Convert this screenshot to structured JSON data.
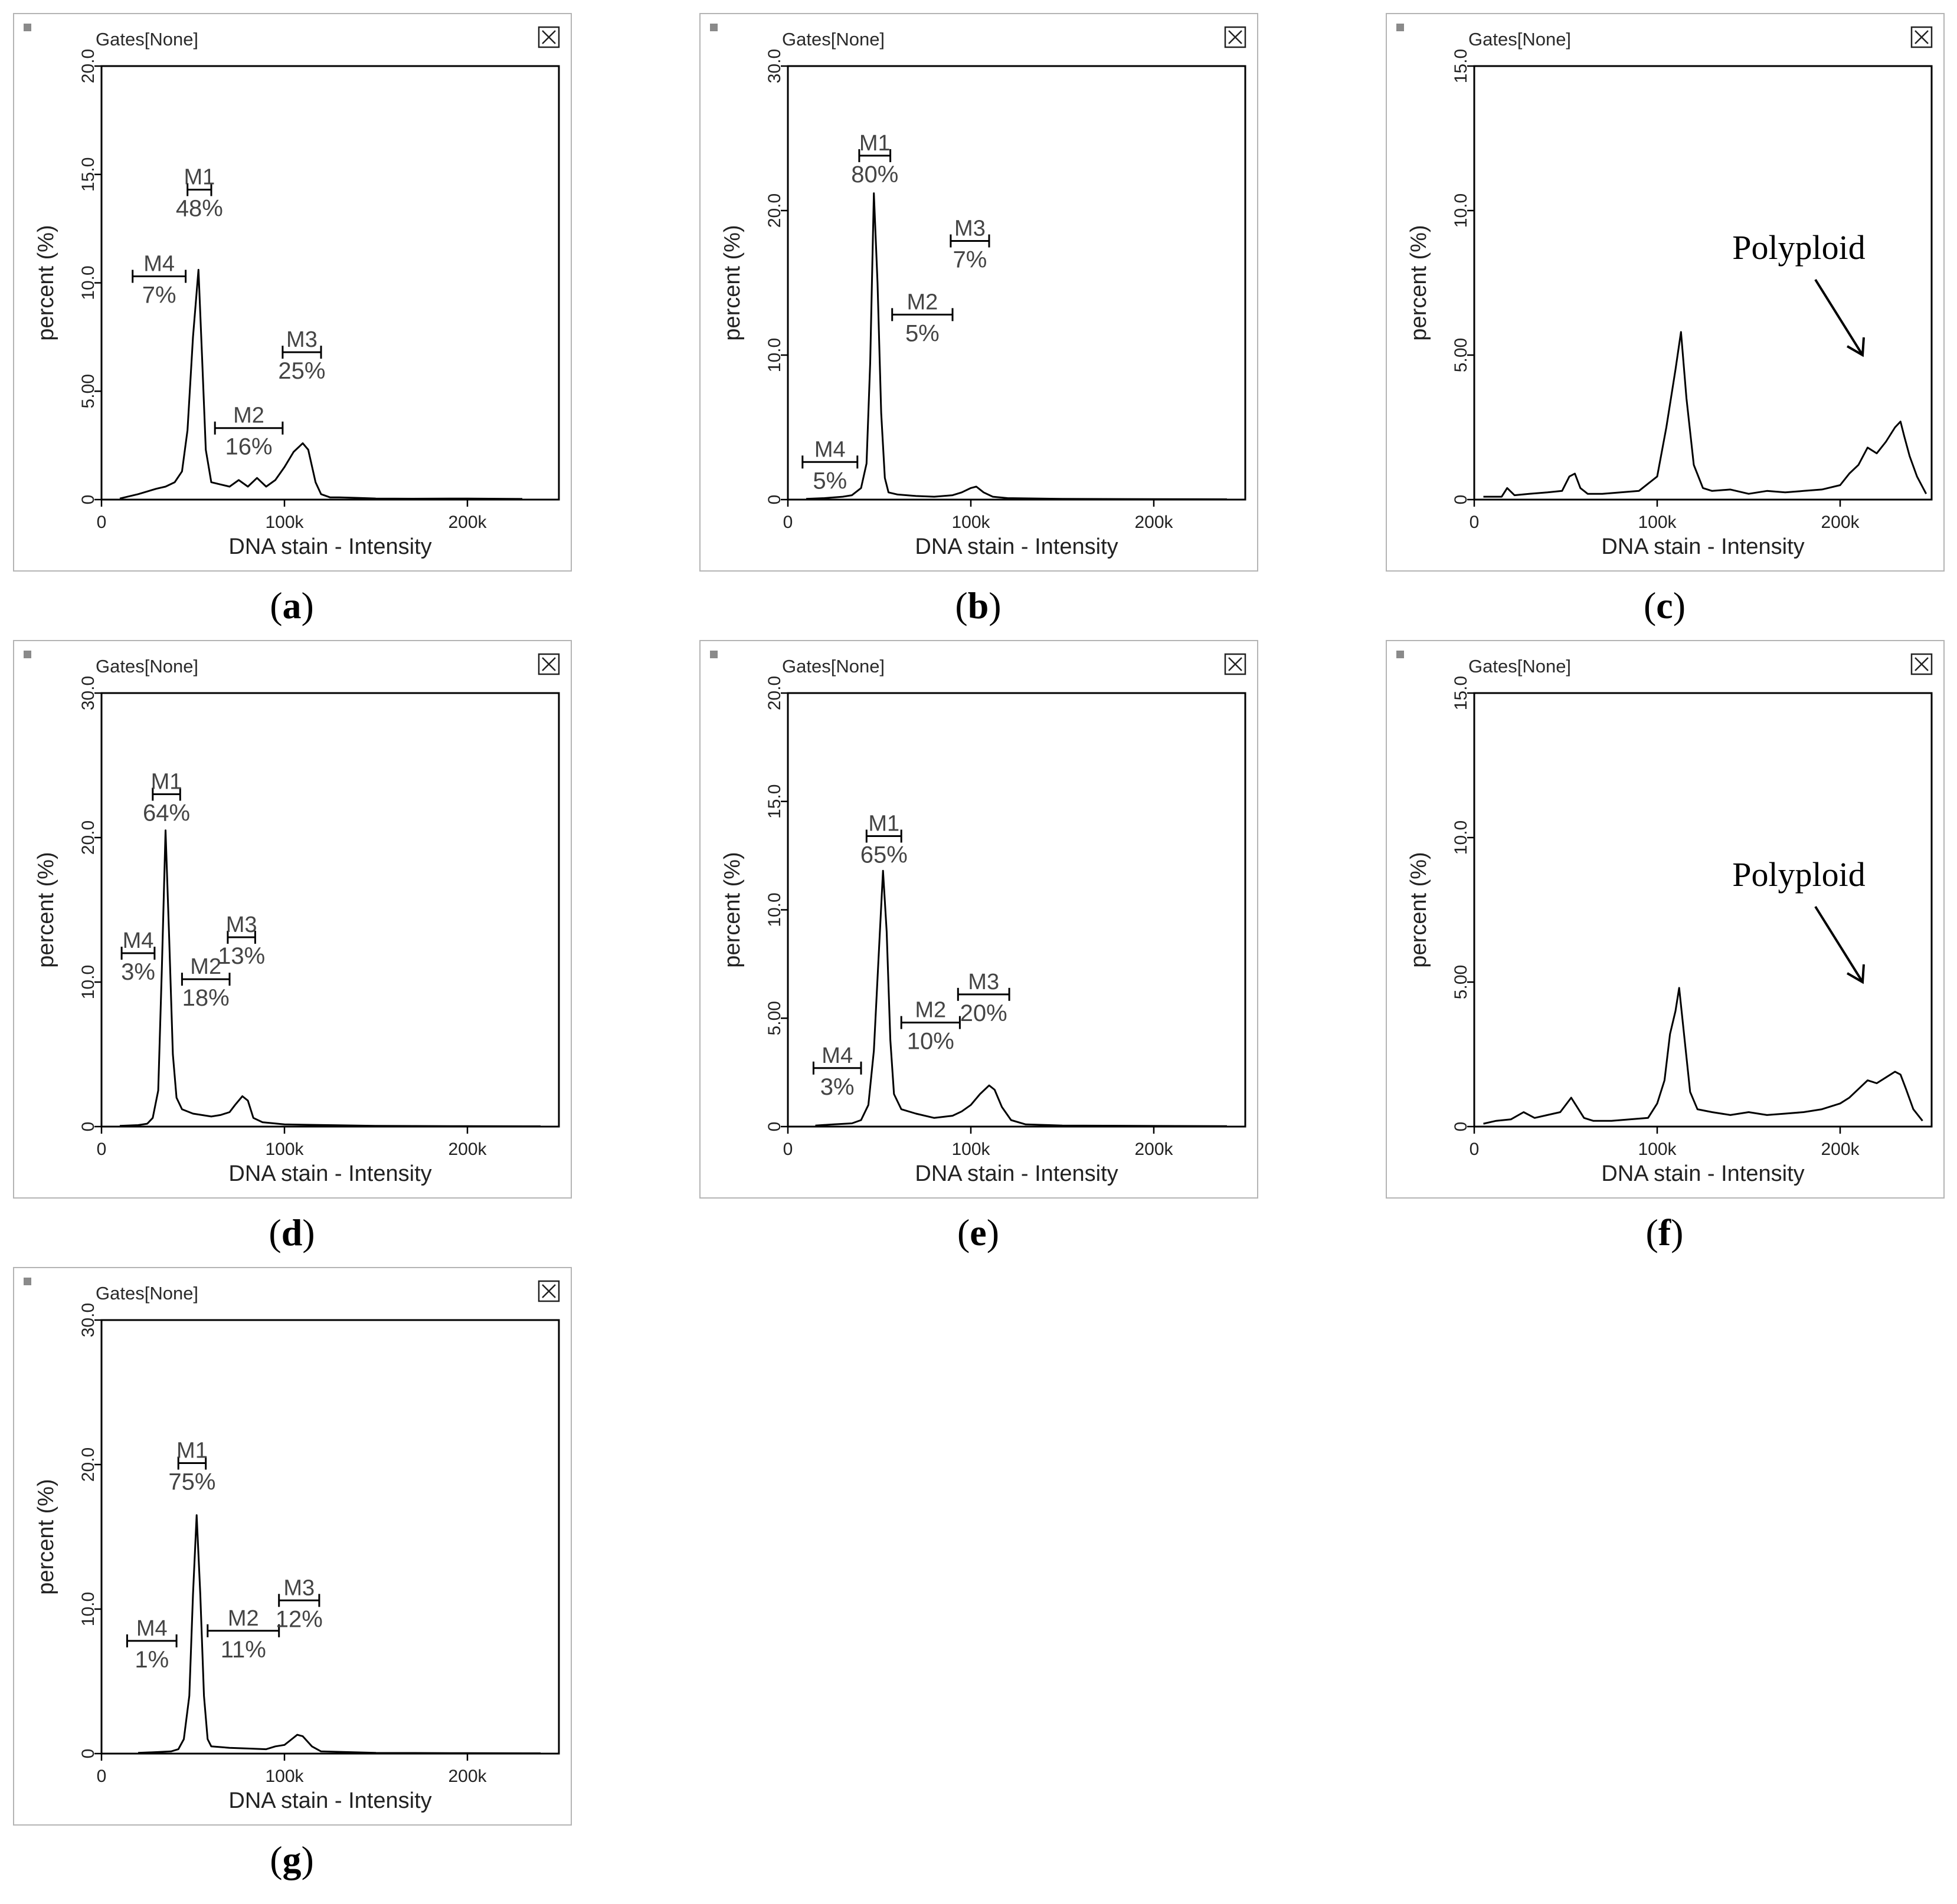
{
  "window": {
    "gates_label": "Gates[None]",
    "close_icon": "close-box-icon",
    "marker_color": "#8a8a8a"
  },
  "axis": {
    "xlabel": "DNA stain - Intensity",
    "ylabel": "percent (%)",
    "xlim": [
      0,
      250000
    ],
    "xticks": [
      0,
      100000,
      200000
    ],
    "xtick_labels": [
      "0",
      "100k",
      "200k"
    ]
  },
  "line_color": "#000000",
  "chart_data": [
    {
      "id": "a",
      "caption": "a",
      "type": "line",
      "ylim": [
        0,
        20
      ],
      "ytick_labels": [
        "0",
        "5.00",
        "10.0",
        "15.0",
        "20.0"
      ],
      "yticks": [
        0,
        5,
        10,
        15,
        20
      ],
      "x": [
        10000,
        20000,
        30000,
        35000,
        40000,
        44000,
        47000,
        50000,
        53000,
        55000,
        57000,
        60000,
        65000,
        70000,
        75000,
        80000,
        85000,
        90000,
        95000,
        100000,
        105000,
        110000,
        113000,
        117000,
        120000,
        125000,
        130000,
        140000,
        150000,
        170000,
        200000,
        230000
      ],
      "values": [
        0.05,
        0.25,
        0.5,
        0.6,
        0.8,
        1.3,
        3.2,
        7.5,
        10.6,
        6.5,
        2.3,
        0.8,
        0.7,
        0.6,
        0.9,
        0.6,
        1.0,
        0.6,
        0.9,
        1.5,
        2.2,
        2.6,
        2.3,
        0.8,
        0.25,
        0.1,
        0.1,
        0.08,
        0.05,
        0.04,
        0.05,
        0.03
      ],
      "markers": [
        {
          "name": "M1",
          "pct": "48%",
          "x0": 47000,
          "x1": 60000,
          "y": 14.3
        },
        {
          "name": "M2",
          "pct": "16%",
          "x0": 62000,
          "x1": 99000,
          "y": 3.3
        },
        {
          "name": "M3",
          "pct": "25%",
          "x0": 99000,
          "x1": 120000,
          "y": 6.8
        },
        {
          "name": "M4",
          "pct": "7%",
          "x0": 17000,
          "x1": 46000,
          "y": 10.3
        }
      ],
      "annotation": null
    },
    {
      "id": "b",
      "caption": "b",
      "type": "line",
      "ylim": [
        0,
        30
      ],
      "ytick_labels": [
        "0",
        "10.0",
        "20.0",
        "30.0"
      ],
      "yticks": [
        0,
        10,
        20,
        30
      ],
      "x": [
        10000,
        20000,
        30000,
        35000,
        40000,
        43000,
        45000,
        47000,
        49000,
        51000,
        53000,
        55000,
        60000,
        70000,
        80000,
        90000,
        95000,
        100000,
        103000,
        107000,
        112000,
        120000,
        150000,
        200000,
        240000
      ],
      "values": [
        0.05,
        0.1,
        0.2,
        0.3,
        0.8,
        2.5,
        9.5,
        21.2,
        15.0,
        6.0,
        1.5,
        0.5,
        0.35,
        0.25,
        0.2,
        0.3,
        0.5,
        0.8,
        0.9,
        0.5,
        0.2,
        0.1,
        0.05,
        0.03,
        0.02
      ],
      "markers": [
        {
          "name": "M1",
          "pct": "80%",
          "x0": 39000,
          "x1": 56000,
          "y": 23.8
        },
        {
          "name": "M2",
          "pct": "5%",
          "x0": 57000,
          "x1": 90000,
          "y": 12.8
        },
        {
          "name": "M3",
          "pct": "7%",
          "x0": 89000,
          "x1": 110000,
          "y": 17.9
        },
        {
          "name": "M4",
          "pct": "5%",
          "x0": 8000,
          "x1": 38000,
          "y": 2.6
        }
      ],
      "annotation": null
    },
    {
      "id": "c",
      "caption": "c",
      "type": "line",
      "ylim": [
        0,
        15
      ],
      "ytick_labels": [
        "0",
        "5.00",
        "10.0",
        "15.0"
      ],
      "yticks": [
        0,
        5,
        10,
        15
      ],
      "x": [
        5000,
        15000,
        18000,
        22000,
        30000,
        40000,
        48000,
        52000,
        55000,
        58000,
        62000,
        70000,
        80000,
        90000,
        100000,
        105000,
        110000,
        113000,
        116000,
        120000,
        125000,
        130000,
        140000,
        150000,
        160000,
        170000,
        180000,
        190000,
        200000,
        205000,
        210000,
        215000,
        220000,
        225000,
        230000,
        233000,
        235000,
        238000,
        242000,
        247000
      ],
      "values": [
        0.1,
        0.1,
        0.4,
        0.15,
        0.2,
        0.25,
        0.3,
        0.8,
        0.9,
        0.4,
        0.2,
        0.2,
        0.25,
        0.3,
        0.8,
        2.5,
        4.5,
        5.8,
        3.5,
        1.2,
        0.4,
        0.3,
        0.35,
        0.2,
        0.3,
        0.25,
        0.3,
        0.35,
        0.5,
        0.9,
        1.2,
        1.8,
        1.6,
        2.0,
        2.5,
        2.7,
        2.2,
        1.5,
        0.8,
        0.2
      ],
      "markers": [],
      "annotation": {
        "text": "Polyploid"
      }
    },
    {
      "id": "d",
      "caption": "d",
      "type": "line",
      "ylim": [
        0,
        30
      ],
      "ytick_labels": [
        "0",
        "10.0",
        "20.0",
        "30.0"
      ],
      "yticks": [
        0,
        10,
        20,
        30
      ],
      "x": [
        10000,
        20000,
        25000,
        28000,
        31000,
        33000,
        35000,
        37000,
        39000,
        41000,
        44000,
        50000,
        60000,
        65000,
        70000,
        73000,
        77000,
        80000,
        83000,
        88000,
        100000,
        150000,
        200000,
        240000
      ],
      "values": [
        0.05,
        0.1,
        0.2,
        0.6,
        2.5,
        11.0,
        20.5,
        13.0,
        5.0,
        2.0,
        1.2,
        0.9,
        0.7,
        0.8,
        1.0,
        1.5,
        2.1,
        1.8,
        0.6,
        0.3,
        0.15,
        0.05,
        0.03,
        0.02
      ],
      "markers": [
        {
          "name": "M1",
          "pct": "64%",
          "x0": 28000,
          "x1": 43000,
          "y": 23.0
        },
        {
          "name": "M2",
          "pct": "18%",
          "x0": 44000,
          "x1": 70000,
          "y": 10.2
        },
        {
          "name": "M3",
          "pct": "13%",
          "x0": 69000,
          "x1": 84000,
          "y": 13.1
        },
        {
          "name": "M4",
          "pct": "3%",
          "x0": 11000,
          "x1": 29000,
          "y": 12.0
        }
      ],
      "annotation": null
    },
    {
      "id": "e",
      "caption": "e",
      "type": "line",
      "ylim": [
        0,
        20
      ],
      "ytick_labels": [
        "0",
        "5.00",
        "10.0",
        "15.0",
        "20.0"
      ],
      "yticks": [
        0,
        5,
        10,
        15,
        20
      ],
      "x": [
        15000,
        25000,
        35000,
        40000,
        44000,
        47000,
        50000,
        52000,
        54000,
        56000,
        58000,
        62000,
        70000,
        80000,
        90000,
        95000,
        100000,
        105000,
        110000,
        113000,
        117000,
        122000,
        130000,
        150000,
        200000,
        240000
      ],
      "values": [
        0.05,
        0.1,
        0.15,
        0.3,
        1.0,
        3.5,
        8.5,
        11.8,
        9.0,
        4.0,
        1.5,
        0.8,
        0.6,
        0.4,
        0.5,
        0.7,
        1.0,
        1.5,
        1.9,
        1.7,
        0.9,
        0.3,
        0.1,
        0.05,
        0.03,
        0.02
      ],
      "markers": [
        {
          "name": "M1",
          "pct": "65%",
          "x0": 43000,
          "x1": 62000,
          "y": 13.4
        },
        {
          "name": "M2",
          "pct": "10%",
          "x0": 62000,
          "x1": 94000,
          "y": 4.8
        },
        {
          "name": "M3",
          "pct": "20%",
          "x0": 93000,
          "x1": 121000,
          "y": 6.1
        },
        {
          "name": "M4",
          "pct": "3%",
          "x0": 14000,
          "x1": 40000,
          "y": 2.7
        }
      ],
      "annotation": null
    },
    {
      "id": "f",
      "caption": "f",
      "type": "line",
      "ylim": [
        0,
        15
      ],
      "ytick_labels": [
        "0",
        "5.00",
        "10.0",
        "15.0"
      ],
      "yticks": [
        0,
        5,
        10,
        15
      ],
      "x": [
        5000,
        12000,
        20000,
        27000,
        33000,
        40000,
        47000,
        53000,
        56000,
        60000,
        65000,
        75000,
        85000,
        95000,
        100000,
        104000,
        107000,
        110000,
        112000,
        115000,
        118000,
        122000,
        130000,
        140000,
        150000,
        160000,
        170000,
        180000,
        190000,
        200000,
        205000,
        210000,
        215000,
        220000,
        225000,
        230000,
        233000,
        236000,
        240000,
        245000
      ],
      "values": [
        0.1,
        0.2,
        0.25,
        0.5,
        0.3,
        0.4,
        0.5,
        1.0,
        0.7,
        0.3,
        0.2,
        0.2,
        0.25,
        0.3,
        0.8,
        1.6,
        3.2,
        4.0,
        4.8,
        3.0,
        1.2,
        0.6,
        0.5,
        0.4,
        0.5,
        0.4,
        0.45,
        0.5,
        0.6,
        0.8,
        1.0,
        1.3,
        1.6,
        1.5,
        1.7,
        1.9,
        1.8,
        1.3,
        0.6,
        0.2
      ],
      "markers": [],
      "annotation": {
        "text": "Polyploid"
      }
    },
    {
      "id": "g",
      "caption": "g",
      "type": "line",
      "ylim": [
        0,
        30
      ],
      "ytick_labels": [
        "0",
        "10.0",
        "20.0",
        "30.0"
      ],
      "yticks": [
        0,
        10,
        20,
        30
      ],
      "x": [
        20000,
        30000,
        38000,
        42000,
        45000,
        48000,
        50000,
        52000,
        54000,
        56000,
        58000,
        60000,
        70000,
        80000,
        90000,
        95000,
        100000,
        103000,
        107000,
        110000,
        115000,
        120000,
        150000,
        200000,
        240000
      ],
      "values": [
        0.05,
        0.1,
        0.15,
        0.3,
        1.0,
        4.0,
        11.0,
        16.5,
        11.0,
        4.0,
        1.0,
        0.5,
        0.4,
        0.35,
        0.3,
        0.5,
        0.6,
        0.9,
        1.3,
        1.2,
        0.5,
        0.15,
        0.05,
        0.03,
        0.02
      ],
      "markers": [
        {
          "name": "M1",
          "pct": "75%",
          "x0": 42000,
          "x1": 57000,
          "y": 20.1
        },
        {
          "name": "M2",
          "pct": "11%",
          "x0": 58000,
          "x1": 97000,
          "y": 8.5
        },
        {
          "name": "M3",
          "pct": "12%",
          "x0": 97000,
          "x1": 119000,
          "y": 10.6
        },
        {
          "name": "M4",
          "pct": "1%",
          "x0": 14000,
          "x1": 41000,
          "y": 7.8
        }
      ],
      "annotation": null
    }
  ]
}
